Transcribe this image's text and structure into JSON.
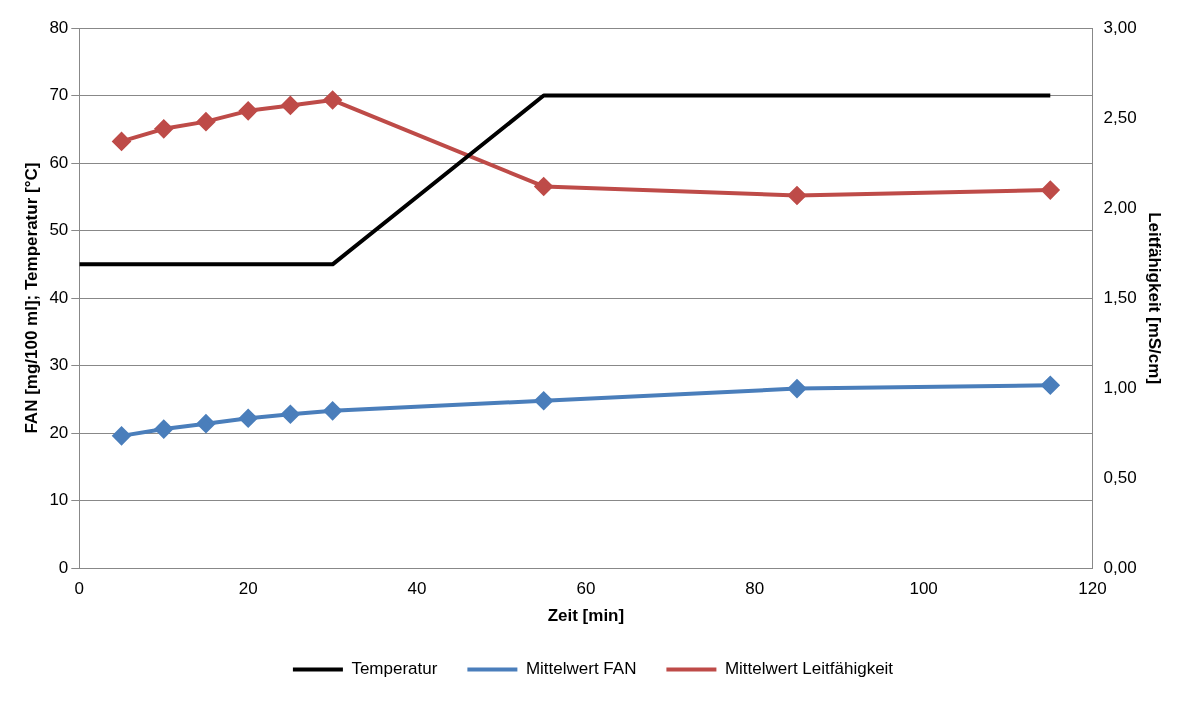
{
  "chart_data": {
    "type": "line",
    "xlabel": "Zeit [min]",
    "ylabel": "FAN [mg/100 ml]; Temperatur [°C]",
    "y2label": "Leitfähigkeit [mS/cm]",
    "xlim": [
      0,
      120
    ],
    "xticks": [
      0,
      20,
      40,
      60,
      80,
      100,
      120
    ],
    "ylim": [
      0,
      80
    ],
    "yticks": [
      0,
      10,
      20,
      30,
      40,
      50,
      60,
      70,
      80
    ],
    "y2lim": [
      0,
      3
    ],
    "y2ticks": [
      {
        "value": 0,
        "label": "0,00"
      },
      {
        "value": 0.5,
        "label": "0,50"
      },
      {
        "value": 1,
        "label": "1,00"
      },
      {
        "value": 1.5,
        "label": "1,50"
      },
      {
        "value": 2,
        "label": "2,00"
      },
      {
        "value": 2.5,
        "label": "2,50"
      },
      {
        "value": 3,
        "label": "3,00"
      }
    ],
    "grid": "y",
    "legend": "bottom",
    "series": [
      {
        "name": "Temperatur",
        "color": "#000000",
        "marker": "none",
        "x": [
          0,
          30,
          55,
          115
        ],
        "values": [
          45,
          45,
          70,
          70
        ]
      },
      {
        "name": "Mittelwert FAN",
        "color": "#4a7ebb",
        "marker": "diamond",
        "x": [
          5,
          10,
          15,
          20,
          25,
          30,
          55,
          85,
          115
        ],
        "values": [
          19.6,
          20.6,
          21.4,
          22.2,
          22.8,
          23.3,
          24.8,
          26.6,
          27.1
        ]
      },
      {
        "name": "Mittelwert Leitfähigkeit",
        "color": "#be4b48",
        "marker": "diamond",
        "axis": "y2",
        "x": [
          5,
          10,
          15,
          20,
          25,
          30,
          55,
          85,
          115
        ],
        "values": [
          2.37,
          2.44,
          2.48,
          2.54,
          2.57,
          2.6,
          2.12,
          2.07,
          2.1
        ]
      }
    ]
  }
}
